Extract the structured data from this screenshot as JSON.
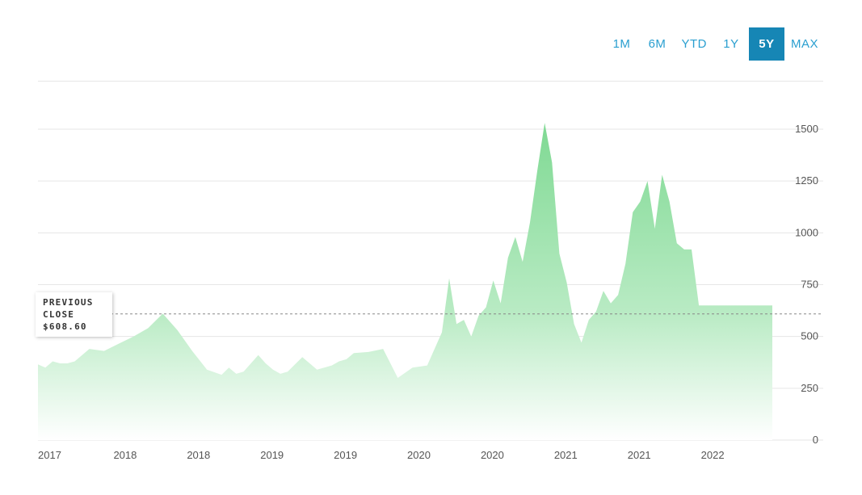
{
  "range_selector": {
    "options": [
      "1M",
      "6M",
      "YTD",
      "1Y",
      "5Y",
      "MAX"
    ],
    "selected": "5Y"
  },
  "previous_close": {
    "label_line1": "PREVIOUS",
    "label_line2": "CLOSE",
    "value": "$608.60",
    "numeric": 608.6
  },
  "colors": {
    "accent": "#1686b5",
    "area_top": "#7fd993",
    "area_bottom": "#ffffff",
    "grid": "#e6e6e6"
  },
  "chart_data": {
    "type": "area",
    "title": "",
    "xlabel": "",
    "ylabel": "",
    "ylim": [
      0,
      1650
    ],
    "yticks": [
      0,
      250,
      500,
      750,
      1000,
      1250,
      1500
    ],
    "ytick_labels": [
      "0",
      "250",
      "500",
      "750",
      "1000",
      "1250",
      "1500"
    ],
    "xtick_labels": [
      "2017",
      "2018",
      "2018",
      "2019",
      "2019",
      "2020",
      "2020",
      "2021",
      "2021",
      "2022"
    ],
    "x_range": [
      0,
      100
    ],
    "xtick_positions": [
      0,
      10,
      20,
      30,
      40,
      50,
      60,
      70,
      80,
      90
    ],
    "grid": true,
    "series": [
      {
        "x": [
          0,
          1,
          2,
          3,
          4,
          5,
          7,
          9,
          11,
          13,
          15,
          17,
          19,
          21,
          23,
          25,
          26,
          27,
          28,
          30,
          31,
          32,
          33,
          34,
          36,
          38,
          40,
          41,
          42,
          43,
          45,
          47,
          49,
          51,
          53,
          55,
          56,
          57,
          58,
          59,
          60,
          61,
          62,
          63,
          64,
          65,
          66,
          67,
          68,
          69,
          70,
          71,
          72,
          73,
          74,
          75,
          76,
          77,
          78,
          79,
          80,
          81,
          82,
          83,
          84,
          85,
          86,
          87,
          88,
          89,
          90,
          91,
          92,
          93,
          94,
          95,
          96,
          97,
          98,
          99,
          100
        ],
        "values": [
          365,
          350,
          380,
          370,
          370,
          380,
          440,
          430,
          465,
          500,
          540,
          610,
          530,
          430,
          340,
          315,
          350,
          320,
          330,
          410,
          370,
          340,
          320,
          330,
          400,
          340,
          360,
          380,
          390,
          420,
          425,
          440,
          300,
          350,
          360,
          520,
          780,
          560,
          580,
          500,
          600,
          640,
          770,
          660,
          880,
          980,
          860,
          1050,
          1300,
          1530,
          1340,
          900,
          760,
          560,
          470,
          580,
          620,
          720,
          660,
          700,
          850,
          1100,
          1150,
          1250,
          1020,
          1280,
          1150,
          950,
          920,
          920,
          650,
          650,
          650,
          650,
          650,
          650,
          650,
          650,
          650,
          650,
          650
        ]
      }
    ]
  }
}
